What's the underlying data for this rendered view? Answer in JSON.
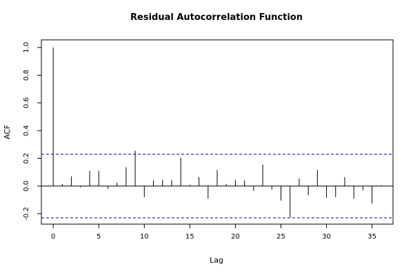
{
  "chart_data": {
    "type": "bar",
    "title": "Residual Autocorrelation Function",
    "xlabel": "Lag",
    "ylabel": "ACF",
    "xlim": [
      -1.3,
      37.3
    ],
    "ylim": [
      -0.275,
      1.055
    ],
    "x_ticks": [
      0,
      5,
      10,
      15,
      20,
      25,
      30,
      35
    ],
    "y_ticks": [
      -0.2,
      0.0,
      0.2,
      0.4,
      0.6,
      0.8,
      1.0
    ],
    "x_tick_labels": [
      "0",
      "5",
      "10",
      "15",
      "20",
      "25",
      "30",
      "35"
    ],
    "y_tick_labels": [
      "-0.2",
      "0.0",
      "0.2",
      "0.4",
      "0.6",
      "0.8",
      "1.0"
    ],
    "confidence_bound": 0.23,
    "series": [
      {
        "lags": [
          0,
          1,
          2,
          3,
          4,
          5,
          6,
          7,
          8,
          9,
          10,
          11,
          12,
          13,
          14,
          15,
          16,
          17,
          18,
          19,
          20,
          21,
          22,
          23,
          24,
          25,
          26,
          27,
          28,
          29,
          30,
          31,
          32,
          33,
          34,
          35,
          36
        ],
        "values": [
          1.0,
          0.015,
          0.07,
          -0.01,
          0.11,
          0.11,
          -0.02,
          0.025,
          0.135,
          0.255,
          -0.08,
          0.04,
          0.045,
          0.045,
          0.205,
          0.01,
          0.065,
          -0.09,
          0.115,
          0.015,
          0.045,
          0.04,
          -0.035,
          0.155,
          -0.025,
          -0.105,
          -0.225,
          0.055,
          -0.065,
          0.115,
          -0.085,
          -0.08,
          0.065,
          -0.09,
          -0.03,
          -0.125,
          0.005
        ]
      }
    ],
    "colors": {
      "bars": "#000000",
      "bounds": "#0000cc",
      "zero_line": "#000000",
      "frame": "#000000"
    },
    "grid": false
  }
}
